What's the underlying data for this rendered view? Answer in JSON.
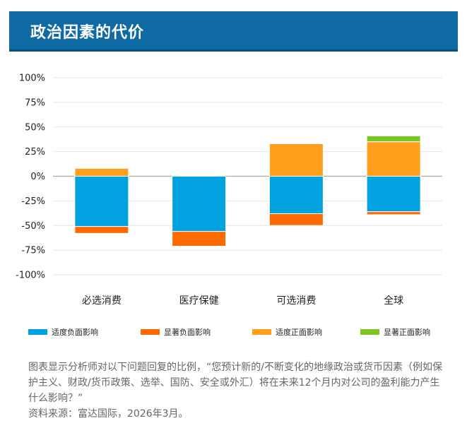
{
  "header": {
    "title": "政治因素的代价"
  },
  "colors": {
    "moderate_negative": "#00a2e0",
    "significant_negative": "#ff6a00",
    "moderate_positive": "#ff9f1c",
    "significant_positive": "#7cc623",
    "zero_line": "#aaaaaa",
    "grid": "#e6e6e6"
  },
  "chart_data": {
    "type": "bar",
    "stacked": true,
    "categories": [
      "必选消费",
      "医疗保健",
      "可选消费",
      "全球"
    ],
    "ylim": [
      -100,
      100
    ],
    "yticks": [
      100,
      75,
      50,
      25,
      0,
      -25,
      -50,
      -75,
      -100
    ],
    "ytick_labels": [
      "100%",
      "75%",
      "50%",
      "25%",
      "0%",
      "-25%",
      "-50%",
      "-75%",
      "-100%"
    ],
    "grid": true,
    "legend_position": "bottom",
    "series": [
      {
        "name": "适度负面影响",
        "color": "#00a2e0",
        "values": [
          -51,
          -56,
          -38,
          -36
        ]
      },
      {
        "name": "显著负面影响",
        "color": "#ff6a00",
        "values": [
          -7,
          -15,
          -12,
          -3
        ]
      },
      {
        "name": "适度正面影响",
        "color": "#ff9f1c",
        "values": [
          8,
          0,
          33,
          35
        ]
      },
      {
        "name": "显著正面影响",
        "color": "#7cc623",
        "values": [
          0,
          0,
          0,
          6
        ]
      }
    ]
  },
  "footnote": {
    "description": "图表显示分析师对以下问题回复的比例，“您预计新的/不断变化的地缘政治或货币因素（例如保护主义、财政/货币政策、选举、国防、安全或外汇）将在未来12个月内对公司的盈利能力产生什么影响？”",
    "source": "资料来源：富达国际，2026年3月。"
  }
}
